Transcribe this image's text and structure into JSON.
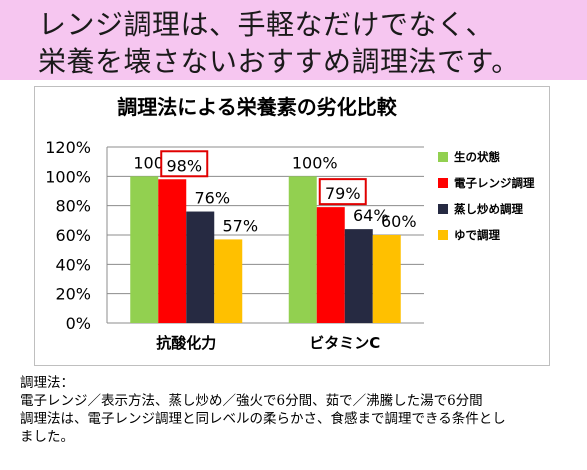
{
  "header": {
    "line1": "レンジ調理は、手軽なだけでなく、",
    "line2": "栄養を壊さないおすすめ調理法です。"
  },
  "chart_data": {
    "type": "bar",
    "title": "調理法による栄養素の劣化比較",
    "categories": [
      "抗酸化力",
      "ビタミンC"
    ],
    "ylim": [
      0,
      120
    ],
    "yticks": [
      "0%",
      "20%",
      "40%",
      "60%",
      "80%",
      "100%",
      "120%"
    ],
    "grid": true,
    "legend_position": "right",
    "series": [
      {
        "name": "生の状態",
        "color": "#92d050",
        "values": [
          100,
          100
        ],
        "labels": [
          "100%",
          "100%"
        ],
        "highlight": [
          false,
          false
        ]
      },
      {
        "name": "電子レンジ調理",
        "color": "#ff0000",
        "values": [
          98,
          79
        ],
        "labels": [
          "98%",
          "79%"
        ],
        "highlight": [
          true,
          true
        ]
      },
      {
        "name": "蒸し炒め調理",
        "color": "#262a42",
        "values": [
          76,
          64
        ],
        "labels": [
          "76%",
          "64%"
        ],
        "highlight": [
          false,
          false
        ]
      },
      {
        "name": "ゆで調理",
        "color": "#ffc000",
        "values": [
          57,
          60
        ],
        "labels": [
          "57%",
          "60%"
        ],
        "highlight": [
          false,
          false
        ]
      }
    ]
  },
  "note": {
    "heading": "調理法：",
    "line1": "電子レンジ／表示方法、蒸し炒め／強火で6分間、茹で／沸騰した湯で6分間",
    "line2": "調理法は、電子レンジ調理と同レベルの柔らかさ、食感まで調理できる条件とし",
    "line3": "ました。"
  }
}
